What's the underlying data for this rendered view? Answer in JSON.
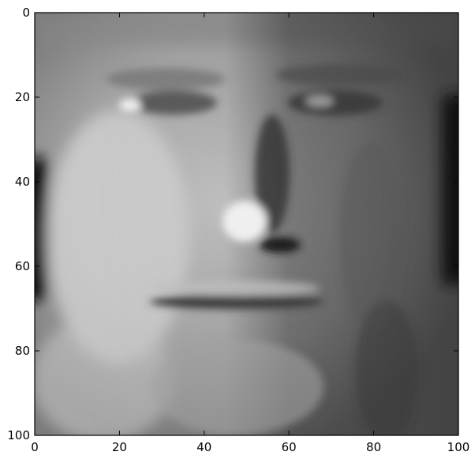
{
  "image": {
    "colormap": "gray",
    "description_content": "grayscale face portrait"
  },
  "chart_data": {
    "type": "heatmap",
    "title": "",
    "xlabel": "",
    "ylabel": "",
    "xlim": [
      0,
      100
    ],
    "ylim": [
      100,
      0
    ],
    "x_ticks": [
      0,
      20,
      40,
      60,
      80,
      100
    ],
    "y_ticks": [
      0,
      20,
      40,
      60,
      80,
      100
    ],
    "x_tick_labels": [
      "0",
      "20",
      "40",
      "60",
      "80",
      "100"
    ],
    "y_tick_labels": [
      "0",
      "20",
      "40",
      "60",
      "80",
      "100"
    ],
    "grid": false,
    "legend": "none"
  }
}
